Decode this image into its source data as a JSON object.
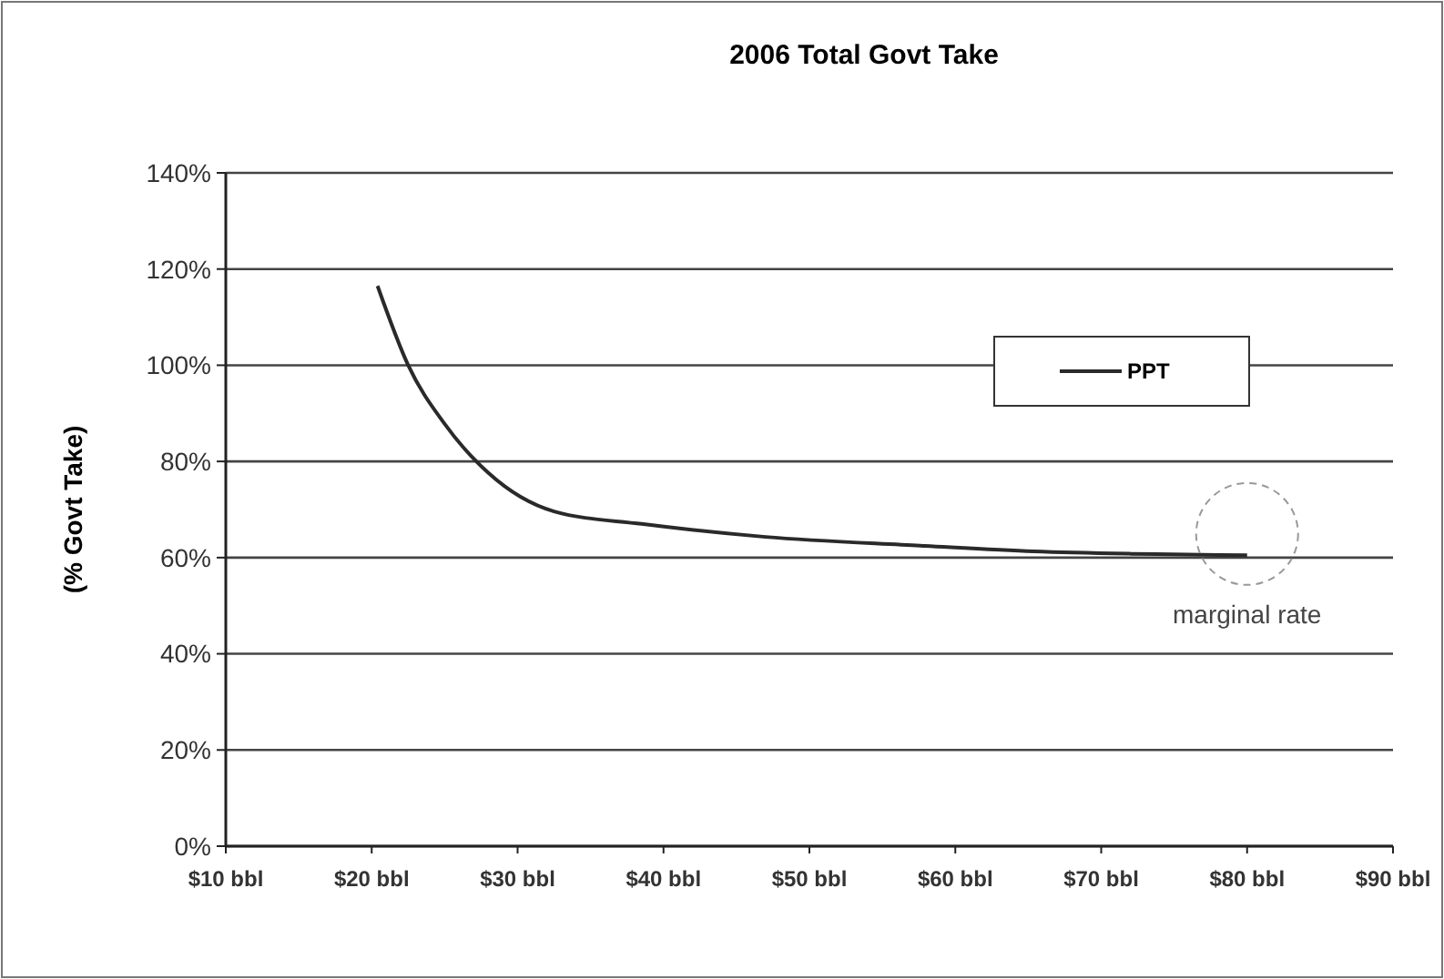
{
  "chart_data": {
    "type": "line",
    "title": "2006 Total Govt Take",
    "ylabel": "(% Govt Take)",
    "x": [
      20.4,
      22.5,
      25,
      28,
      32.5,
      38.5,
      47,
      57.6,
      65.4,
      72,
      80
    ],
    "series": [
      {
        "name": "PPT",
        "color": "#2a2a2a",
        "values": [
          116.5,
          100,
          87.8,
          77.6,
          69.6,
          67,
          64.3,
          62.5,
          61.3,
          60.8,
          60.5
        ]
      }
    ],
    "xlim": [
      10,
      90
    ],
    "xticks": [
      {
        "value": 10,
        "label": "$10 bbl"
      },
      {
        "value": 20,
        "label": "$20 bbl"
      },
      {
        "value": 30,
        "label": "$30 bbl"
      },
      {
        "value": 40,
        "label": "$40 bbl"
      },
      {
        "value": 50,
        "label": "$50 bbl"
      },
      {
        "value": 60,
        "label": "$60 bbl"
      },
      {
        "value": 70,
        "label": "$70 bbl"
      },
      {
        "value": 80,
        "label": "$80 bbl"
      },
      {
        "value": 90,
        "label": "$90 bbl"
      }
    ],
    "ylim": [
      0,
      140
    ],
    "yticks": [
      {
        "value": 0,
        "label": "0%"
      },
      {
        "value": 20,
        "label": "20%"
      },
      {
        "value": 40,
        "label": "40%"
      },
      {
        "value": 60,
        "label": "60%"
      },
      {
        "value": 80,
        "label": "80%"
      },
      {
        "value": 100,
        "label": "100%"
      },
      {
        "value": 120,
        "label": "120%"
      },
      {
        "value": 140,
        "label": "140%"
      }
    ],
    "grid": "y",
    "legend": "top right",
    "marker": "none",
    "line_style": "solid",
    "annotations": [
      {
        "text": "marginal rate",
        "x": 80,
        "y": 60
      }
    ]
  }
}
